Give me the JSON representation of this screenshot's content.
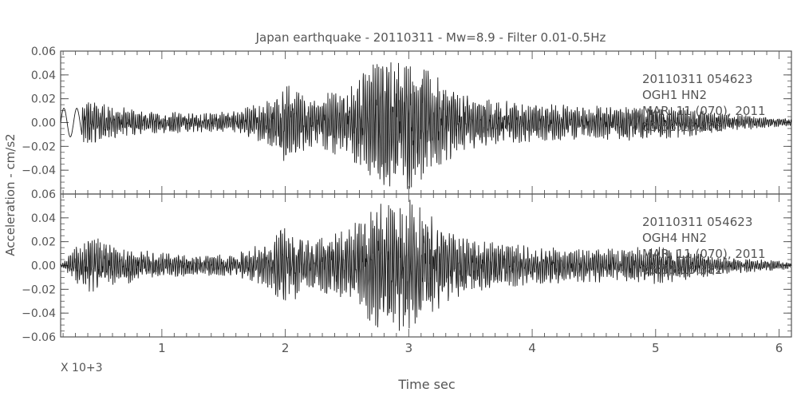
{
  "chart_data": {
    "type": "line",
    "title": "Japan earthquake  -  20110311  -  Mw=8.9  -  Filter 0.01-0.5Hz",
    "xlabel": "Time sec",
    "ylabel": "Acceleration  -  cm/s2",
    "x_multiplier_label": "X 10+3",
    "xlim": [
      0.18,
      6.1
    ],
    "x_ticks": [
      1,
      2,
      3,
      4,
      5,
      6
    ],
    "x_tick_labels": [
      "1",
      "2",
      "3",
      "4",
      "5",
      "6"
    ],
    "ylim": [
      -0.06,
      0.06
    ],
    "y_ticks": [
      -0.06,
      -0.04,
      -0.02,
      0.0,
      0.02,
      0.04,
      0.06
    ],
    "y_tick_labels": [
      "−0.06",
      "−0.04",
      "−0.02",
      "0.00",
      "0.02",
      "0.04",
      "0.06"
    ],
    "grid": false,
    "panels": [
      {
        "name": "OGH1",
        "annotation": [
          "20110311  054623",
          "OGH1    HN2",
          "MAR. 11 (070), 2011",
          "05:55:15.476"
        ],
        "envelope": [
          {
            "x": 0.2,
            "amp": 0.012
          },
          {
            "x": 0.3,
            "amp": 0.018
          },
          {
            "x": 0.45,
            "amp": 0.02
          },
          {
            "x": 0.6,
            "amp": 0.014
          },
          {
            "x": 0.9,
            "amp": 0.01
          },
          {
            "x": 1.3,
            "amp": 0.008
          },
          {
            "x": 1.6,
            "amp": 0.01
          },
          {
            "x": 1.85,
            "amp": 0.018
          },
          {
            "x": 2.0,
            "amp": 0.034
          },
          {
            "x": 2.2,
            "amp": 0.02
          },
          {
            "x": 2.5,
            "amp": 0.03
          },
          {
            "x": 2.75,
            "amp": 0.052
          },
          {
            "x": 3.0,
            "amp": 0.056
          },
          {
            "x": 3.2,
            "amp": 0.04
          },
          {
            "x": 3.5,
            "amp": 0.022
          },
          {
            "x": 4.0,
            "amp": 0.016
          },
          {
            "x": 4.5,
            "amp": 0.014
          },
          {
            "x": 5.0,
            "amp": 0.016
          },
          {
            "x": 5.5,
            "amp": 0.008
          },
          {
            "x": 6.1,
            "amp": 0.003
          }
        ]
      },
      {
        "name": "OGH4",
        "annotation": [
          "20110311  054623",
          "OGH4    HN2",
          "MAR. 11 (070), 2011",
          "05:55:15.582"
        ],
        "envelope": [
          {
            "x": 0.2,
            "amp": 0.002
          },
          {
            "x": 0.3,
            "amp": 0.016
          },
          {
            "x": 0.45,
            "amp": 0.024
          },
          {
            "x": 0.6,
            "amp": 0.018
          },
          {
            "x": 0.9,
            "amp": 0.012
          },
          {
            "x": 1.3,
            "amp": 0.008
          },
          {
            "x": 1.6,
            "amp": 0.01
          },
          {
            "x": 1.85,
            "amp": 0.02
          },
          {
            "x": 2.0,
            "amp": 0.034
          },
          {
            "x": 2.2,
            "amp": 0.02
          },
          {
            "x": 2.5,
            "amp": 0.03
          },
          {
            "x": 2.75,
            "amp": 0.052
          },
          {
            "x": 3.0,
            "amp": 0.056
          },
          {
            "x": 3.2,
            "amp": 0.04
          },
          {
            "x": 3.5,
            "amp": 0.022
          },
          {
            "x": 4.0,
            "amp": 0.016
          },
          {
            "x": 4.5,
            "amp": 0.014
          },
          {
            "x": 5.0,
            "amp": 0.016
          },
          {
            "x": 5.5,
            "amp": 0.008
          },
          {
            "x": 6.1,
            "amp": 0.003
          }
        ]
      }
    ]
  },
  "colors": {
    "frame": "#555555",
    "trace": "#1a1a1a",
    "text": "#555555"
  }
}
